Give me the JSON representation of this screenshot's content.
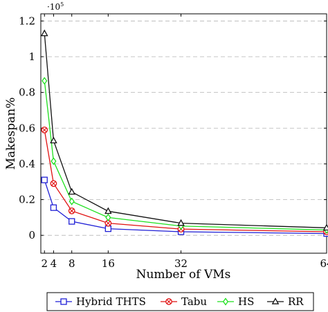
{
  "chart_data": {
    "type": "line",
    "title": "",
    "xlabel": "Number of VMs",
    "ylabel": "Makespan%",
    "scale_label": "·10",
    "scale_exponent": "5",
    "x": [
      2,
      4,
      8,
      16,
      32,
      64
    ],
    "x_ticks": [
      2,
      4,
      8,
      16,
      32,
      64
    ],
    "xlim": [
      1.2,
      64
    ],
    "ylim": [
      -0.1,
      1.24
    ],
    "y_ticks": [
      0,
      0.2,
      0.4,
      0.6,
      0.8,
      1,
      1.2
    ],
    "y_tick_labels": [
      "0",
      "0.2",
      "0.4",
      "0.6",
      "0.8",
      "1",
      "1.2"
    ],
    "grid": "horizontal dashed",
    "legend_position": "bottom",
    "series": [
      {
        "name": "Hybrid THTS",
        "color": "#1f1fd6",
        "marker": "square",
        "values": [
          0.31,
          0.155,
          0.078,
          0.037,
          0.02,
          0.01
        ]
      },
      {
        "name": "Tabu",
        "color": "#e01010",
        "marker": "circle-cross",
        "values": [
          0.59,
          0.29,
          0.137,
          0.068,
          0.035,
          0.02
        ]
      },
      {
        "name": "HS",
        "color": "#1ee01e",
        "marker": "diamond",
        "values": [
          0.865,
          0.415,
          0.19,
          0.1,
          0.052,
          0.03
        ]
      },
      {
        "name": "RR",
        "color": "#111111",
        "marker": "triangle",
        "values": [
          1.13,
          0.53,
          0.243,
          0.135,
          0.068,
          0.042
        ]
      }
    ]
  }
}
